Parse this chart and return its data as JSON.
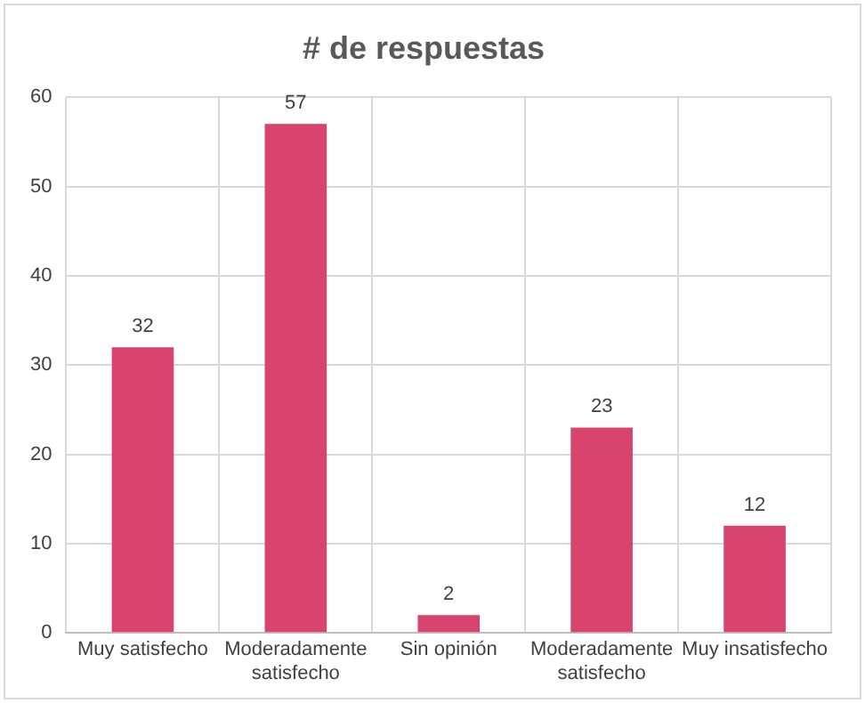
{
  "chart_data": {
    "type": "bar",
    "title": "# de respuestas",
    "categories": [
      "Muy satisfecho",
      "Moderadamente satisfecho",
      "Sin opinión",
      "Moderadamente satisfecho",
      "Muy insatisfecho"
    ],
    "values": [
      32,
      57,
      2,
      23,
      12
    ],
    "color": "#d9446f",
    "ylim": [
      0,
      60
    ],
    "yticks": [
      0,
      10,
      20,
      30,
      40,
      50,
      60
    ],
    "grid": true,
    "data_labels": true,
    "legend": false
  }
}
